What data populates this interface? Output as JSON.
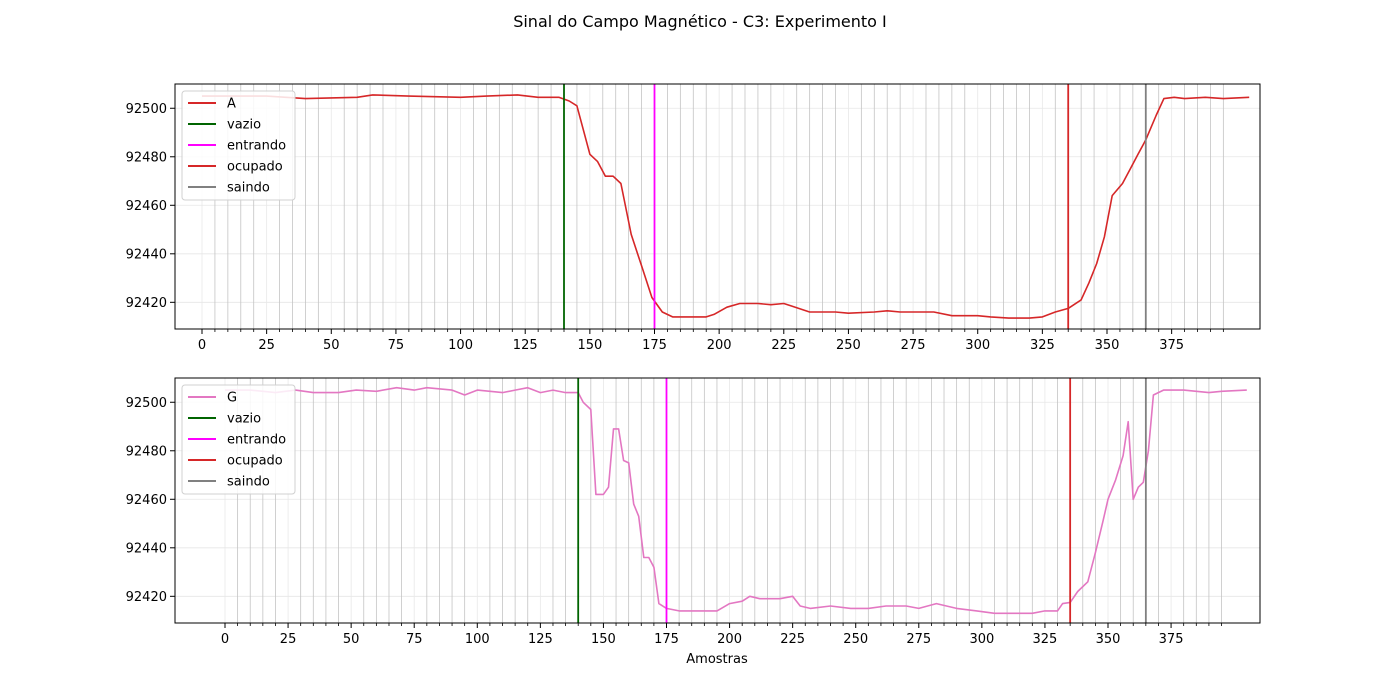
{
  "chart_data": {
    "title": "Sinal do Campo Magnético - C3: Experimento I",
    "xlabel": "Amostras",
    "subplots": [
      {
        "type": "line",
        "legend_position": "upper-left",
        "xlim": [
          -10,
          420
        ],
        "ylim": [
          92409,
          92510
        ],
        "xticks": [
          0,
          25,
          50,
          75,
          100,
          125,
          150,
          175,
          200,
          225,
          250,
          275,
          300,
          325,
          350,
          375
        ],
        "yticks": [
          92420,
          92440,
          92460,
          92480,
          92500
        ],
        "grid": true,
        "series": [
          {
            "name": "A",
            "color": "#d62728",
            "points": [
              [
                0,
                92505
              ],
              [
                25,
                92505
              ],
              [
                40,
                92504
              ],
              [
                60,
                92504.5
              ],
              [
                66,
                92505.5
              ],
              [
                80,
                92505
              ],
              [
                100,
                92504.5
              ],
              [
                110,
                92505
              ],
              [
                122,
                92505.5
              ],
              [
                130,
                92504.5
              ],
              [
                138,
                92504.5
              ],
              [
                142,
                92503
              ],
              [
                145,
                92501
              ],
              [
                150,
                92481
              ],
              [
                153,
                92478
              ],
              [
                156,
                92472
              ],
              [
                159,
                92472
              ],
              [
                162,
                92469
              ],
              [
                166,
                92448
              ],
              [
                170,
                92435
              ],
              [
                174,
                92422
              ],
              [
                178,
                92416
              ],
              [
                182,
                92414
              ],
              [
                190,
                92414
              ],
              [
                195,
                92414
              ],
              [
                198,
                92415
              ],
              [
                203,
                92418
              ],
              [
                208,
                92419.5
              ],
              [
                215,
                92419.5
              ],
              [
                220,
                92419
              ],
              [
                225,
                92419.5
              ],
              [
                228,
                92418.5
              ],
              [
                235,
                92416
              ],
              [
                245,
                92416
              ],
              [
                250,
                92415.5
              ],
              [
                260,
                92416
              ],
              [
                265,
                92416.5
              ],
              [
                270,
                92416
              ],
              [
                275,
                92416
              ],
              [
                283,
                92416
              ],
              [
                290,
                92414.5
              ],
              [
                300,
                92414.5
              ],
              [
                305,
                92414
              ],
              [
                312,
                92413.5
              ],
              [
                320,
                92413.5
              ],
              [
                325,
                92414
              ],
              [
                330,
                92416
              ],
              [
                335,
                92417.5
              ],
              [
                340,
                92421
              ],
              [
                343,
                92428
              ],
              [
                346,
                92436
              ],
              [
                349,
                92447
              ],
              [
                352,
                92464
              ],
              [
                356,
                92469
              ],
              [
                359,
                92475
              ],
              [
                362,
                92481
              ],
              [
                365,
                92487
              ],
              [
                369,
                92497
              ],
              [
                372,
                92504
              ],
              [
                376,
                92504.5
              ],
              [
                380,
                92504
              ],
              [
                388,
                92504.5
              ],
              [
                395,
                92504
              ],
              [
                405,
                92504.5
              ]
            ]
          }
        ],
        "markers": [
          {
            "name": "vazio",
            "x": 140,
            "color": "#006400"
          },
          {
            "name": "entrando",
            "x": 175,
            "color": "#ff00ff"
          },
          {
            "name": "ocupado",
            "x": 335,
            "color": "#d62728"
          },
          {
            "name": "saindo",
            "x": 365,
            "color": "#808080"
          }
        ]
      },
      {
        "type": "line",
        "legend_position": "upper-left",
        "xlim": [
          -10,
          420
        ],
        "ylim": [
          92409,
          92510
        ],
        "xticks": [
          0,
          25,
          50,
          75,
          100,
          125,
          150,
          175,
          200,
          225,
          250,
          275,
          300,
          325,
          350,
          375
        ],
        "yticks": [
          92420,
          92440,
          92460,
          92480,
          92500
        ],
        "grid": true,
        "series": [
          {
            "name": "G",
            "color": "#e377c2",
            "points": [
              [
                0,
                92505
              ],
              [
                10,
                92505
              ],
              [
                20,
                92504
              ],
              [
                28,
                92505
              ],
              [
                35,
                92504
              ],
              [
                45,
                92504
              ],
              [
                52,
                92505
              ],
              [
                60,
                92504.5
              ],
              [
                68,
                92506
              ],
              [
                75,
                92505
              ],
              [
                80,
                92506
              ],
              [
                90,
                92505
              ],
              [
                95,
                92503
              ],
              [
                100,
                92505
              ],
              [
                110,
                92504
              ],
              [
                115,
                92505
              ],
              [
                120,
                92506
              ],
              [
                125,
                92504
              ],
              [
                130,
                92505
              ],
              [
                135,
                92504
              ],
              [
                140,
                92504
              ],
              [
                142,
                92500
              ],
              [
                145,
                92497
              ],
              [
                147,
                92462
              ],
              [
                150,
                92462
              ],
              [
                152,
                92465
              ],
              [
                154,
                92489
              ],
              [
                156,
                92489
              ],
              [
                158,
                92476
              ],
              [
                160,
                92475
              ],
              [
                162,
                92458
              ],
              [
                164,
                92453
              ],
              [
                166,
                92436
              ],
              [
                168,
                92436
              ],
              [
                170,
                92432
              ],
              [
                172,
                92417
              ],
              [
                175,
                92415
              ],
              [
                180,
                92414
              ],
              [
                185,
                92414
              ],
              [
                190,
                92414
              ],
              [
                195,
                92414
              ],
              [
                200,
                92417
              ],
              [
                205,
                92418
              ],
              [
                208,
                92420
              ],
              [
                212,
                92419
              ],
              [
                216,
                92419
              ],
              [
                220,
                92419
              ],
              [
                225,
                92420
              ],
              [
                228,
                92416
              ],
              [
                232,
                92415
              ],
              [
                240,
                92416
              ],
              [
                248,
                92415
              ],
              [
                255,
                92415
              ],
              [
                262,
                92416
              ],
              [
                270,
                92416
              ],
              [
                275,
                92415
              ],
              [
                282,
                92417
              ],
              [
                290,
                92415
              ],
              [
                298,
                92414
              ],
              [
                305,
                92413
              ],
              [
                310,
                92413
              ],
              [
                315,
                92413
              ],
              [
                320,
                92413
              ],
              [
                325,
                92414
              ],
              [
                330,
                92414
              ],
              [
                332,
                92417
              ],
              [
                335,
                92417.5
              ],
              [
                338,
                92422
              ],
              [
                342,
                92426
              ],
              [
                345,
                92438
              ],
              [
                348,
                92451
              ],
              [
                350,
                92460
              ],
              [
                353,
                92468
              ],
              [
                356,
                92478
              ],
              [
                358,
                92492
              ],
              [
                360,
                92460
              ],
              [
                362,
                92465
              ],
              [
                364,
                92467
              ],
              [
                366,
                92480
              ],
              [
                368,
                92503
              ],
              [
                372,
                92505
              ],
              [
                380,
                92505
              ],
              [
                390,
                92504
              ],
              [
                395,
                92504.5
              ],
              [
                405,
                92505
              ]
            ]
          }
        ],
        "markers": [
          {
            "name": "vazio",
            "x": 140,
            "color": "#006400"
          },
          {
            "name": "entrando",
            "x": 175,
            "color": "#ff00ff"
          },
          {
            "name": "ocupado",
            "x": 335,
            "color": "#d62728"
          },
          {
            "name": "saindo",
            "x": 365,
            "color": "#808080"
          }
        ]
      }
    ]
  }
}
